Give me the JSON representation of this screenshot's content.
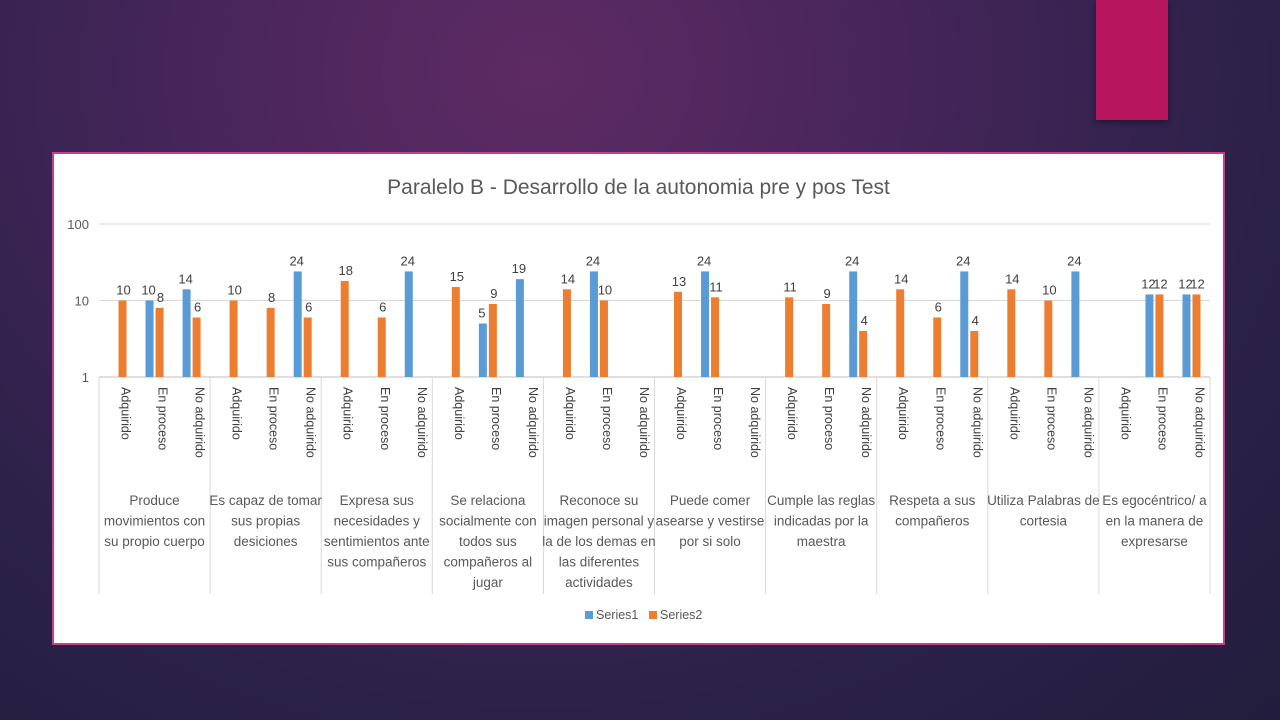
{
  "colors": {
    "series1": "#5b9bd5",
    "series2": "#ed7d31",
    "accent": "#b8155f",
    "frame_border": "#c2418d"
  },
  "chart_data": {
    "type": "bar",
    "title": "Paralelo B - Desarrollo de la autonomia  pre y pos Test",
    "yscale": "log",
    "ylim": [
      1,
      100
    ],
    "yticks": [
      "1",
      "10",
      "100"
    ],
    "grid": true,
    "legend_position": "bottom",
    "subcategories": [
      "Adquirido",
      "En proceso",
      "No adquirido"
    ],
    "groups": [
      {
        "label": [
          "Produce",
          "movimientos con",
          "su propio cuerpo"
        ]
      },
      {
        "label": [
          "Es capaz de tomar",
          "sus propias",
          "desiciones"
        ]
      },
      {
        "label": [
          "Expresa sus",
          "necesidades y",
          "sentimientos ante",
          "sus compañeros"
        ]
      },
      {
        "label": [
          "Se relaciona",
          "socialmente con",
          "todos sus",
          "compañeros al",
          "jugar"
        ]
      },
      {
        "label": [
          "Reconoce su",
          "imagen personal y",
          "la de los demas en",
          "las diferentes",
          "actividades"
        ]
      },
      {
        "label": [
          "Puede comer",
          "asearse y vestirse",
          "por si solo"
        ]
      },
      {
        "label": [
          "Cumple las reglas",
          "indicadas por la",
          "maestra"
        ]
      },
      {
        "label": [
          "Respeta a sus",
          "compañeros"
        ]
      },
      {
        "label": [
          "Utiliza Palabras de",
          "cortesia"
        ]
      },
      {
        "label": [
          "Es egocéntrico/ a",
          "en la manera de",
          "expresarse"
        ]
      }
    ],
    "series": [
      {
        "name": "Series1",
        "values": [
          null,
          10,
          14,
          null,
          null,
          24,
          null,
          null,
          24,
          null,
          5,
          19,
          null,
          24,
          null,
          null,
          24,
          null,
          null,
          null,
          24,
          null,
          null,
          24,
          null,
          null,
          24,
          null,
          12,
          12
        ]
      },
      {
        "name": "Series2",
        "values": [
          10,
          8,
          6,
          10,
          8,
          6,
          18,
          6,
          null,
          15,
          9,
          null,
          14,
          10,
          null,
          13,
          11,
          null,
          11,
          9,
          4,
          14,
          6,
          4,
          14,
          10,
          null,
          null,
          12,
          12
        ]
      }
    ]
  }
}
